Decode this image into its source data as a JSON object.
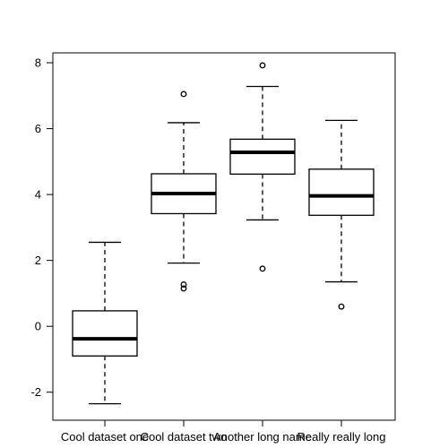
{
  "chart_data": {
    "type": "boxplot",
    "title": "",
    "xlabel": "",
    "ylabel": "",
    "categories": [
      "Cool dataset one",
      "Cool dataset two",
      "Another long name",
      "Really really long"
    ],
    "boxes": [
      {
        "name": "Cool dataset one",
        "whisker_low": -2.35,
        "q1": -0.9,
        "median": -0.38,
        "q3": 0.47,
        "whisker_high": 2.55,
        "outliers": []
      },
      {
        "name": "Cool dataset two",
        "whisker_low": 1.92,
        "q1": 3.42,
        "median": 4.03,
        "q3": 4.63,
        "whisker_high": 6.18,
        "outliers": [
          1.15,
          1.27,
          7.05
        ]
      },
      {
        "name": "Another long name",
        "whisker_low": 3.23,
        "q1": 4.62,
        "median": 5.28,
        "q3": 5.68,
        "whisker_high": 7.28,
        "outliers": [
          1.75,
          7.92
        ]
      },
      {
        "name": "Really really long",
        "whisker_low": 1.35,
        "q1": 3.37,
        "median": 3.96,
        "q3": 4.77,
        "whisker_high": 6.25,
        "outliers": [
          0.6
        ]
      }
    ],
    "y_ticks": [
      -2,
      0,
      2,
      4,
      6,
      8
    ],
    "ylim": [
      -2.85,
      8.3
    ],
    "grid": false,
    "legend": "none"
  }
}
